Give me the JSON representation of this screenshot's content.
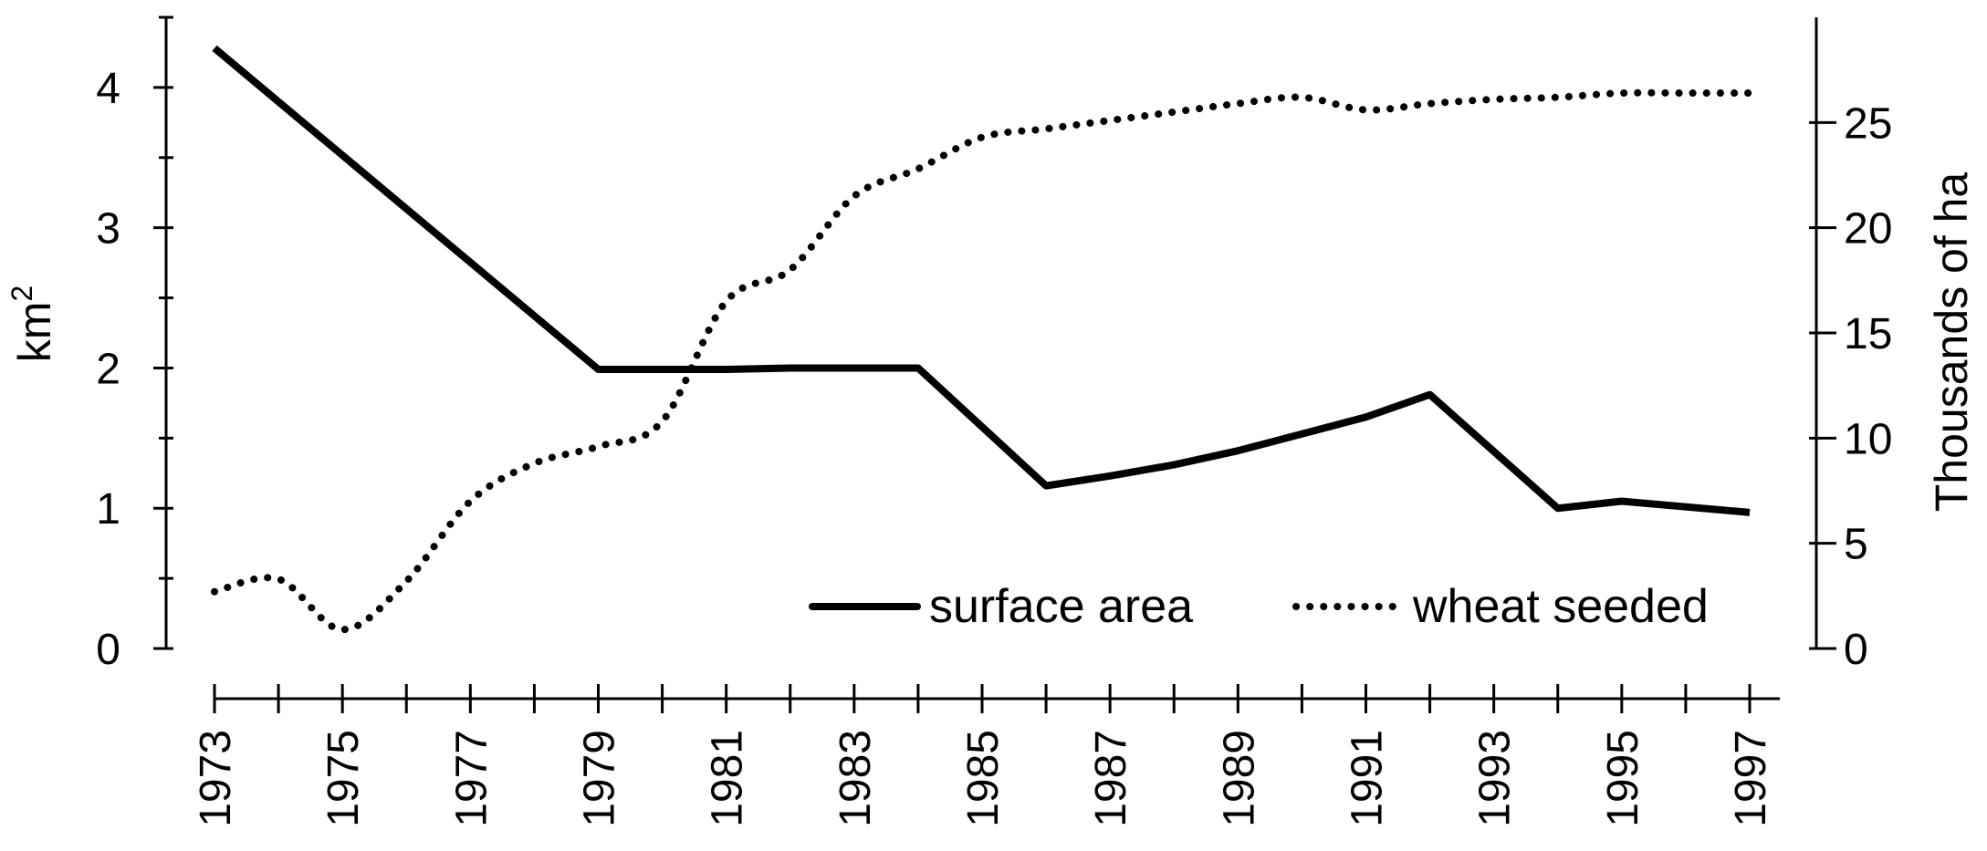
{
  "chart_data": {
    "type": "line",
    "title": "",
    "xlabel": "",
    "x_ticks": [
      "1973",
      "1975",
      "1977",
      "1979",
      "1981",
      "1983",
      "1985",
      "1987",
      "1989",
      "1991",
      "1993",
      "1995",
      "1997"
    ],
    "xlim": [
      1973,
      1997
    ],
    "y_left": {
      "label": "km",
      "label_superscript": "2",
      "ticks": [
        "0",
        "1",
        "2",
        "3",
        "4"
      ],
      "ylim": [
        0,
        4.5
      ]
    },
    "y_right": {
      "label": "Thousands of ha",
      "ticks": [
        "0",
        "5",
        "10",
        "15",
        "20",
        "25"
      ],
      "ylim": [
        0,
        30
      ]
    },
    "legend_position": "bottom-right",
    "series": [
      {
        "name": "surface area",
        "axis": "left",
        "style": "solid",
        "color": "#000000",
        "x": [
          1973,
          1979,
          1980,
          1981,
          1982,
          1983,
          1984,
          1986,
          1987,
          1988,
          1989,
          1990,
          1991,
          1992,
          1994,
          1995,
          1997
        ],
        "y": [
          4.28,
          1.99,
          1.99,
          1.99,
          2.0,
          2.0,
          2.0,
          1.16,
          1.23,
          1.31,
          1.41,
          1.53,
          1.65,
          1.81,
          1.0,
          1.05,
          0.97
        ]
      },
      {
        "name": "wheat seeded",
        "axis": "right",
        "style": "dotted",
        "color": "#000000",
        "x": [
          1973,
          1974,
          1975,
          1976,
          1977,
          1978,
          1979,
          1980,
          1981,
          1982,
          1983,
          1984,
          1985,
          1986,
          1987,
          1988,
          1989,
          1990,
          1991,
          1992,
          1993,
          1994,
          1995,
          1996,
          1997
        ],
        "y": [
          2.7,
          3.3,
          0.9,
          3.2,
          7.0,
          8.8,
          9.6,
          10.8,
          16.5,
          18.0,
          21.5,
          22.8,
          24.3,
          24.7,
          25.1,
          25.5,
          25.9,
          26.2,
          25.6,
          25.9,
          26.1,
          26.2,
          26.4,
          26.4,
          26.4
        ]
      }
    ]
  }
}
